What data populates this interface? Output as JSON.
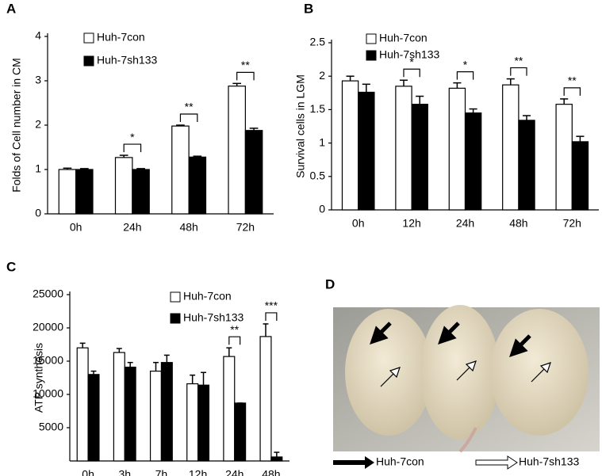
{
  "chart_data": [
    {
      "type": "bar",
      "panel": "A",
      "y_label": "Folds of Cell number in CM",
      "categories": [
        "0h",
        "24h",
        "48h",
        "72h"
      ],
      "series": [
        {
          "name": "Huh-7con",
          "color": "#ffffff",
          "values": [
            1.0,
            1.27,
            1.98,
            2.88
          ],
          "errors": [
            0.03,
            0.05,
            0.02,
            0.06
          ]
        },
        {
          "name": "Huh-7sh133",
          "color": "#000000",
          "values": [
            1.0,
            1.0,
            1.28,
            1.88
          ],
          "errors": [
            0.02,
            0.02,
            0.02,
            0.05
          ]
        }
      ],
      "significance": [
        null,
        "*",
        "**",
        "**"
      ],
      "ylim": [
        0,
        4
      ],
      "yticks": [
        0,
        1,
        2,
        3,
        4
      ]
    },
    {
      "type": "bar",
      "panel": "B",
      "y_label": "Survival cells in LGM",
      "categories": [
        "0h",
        "12h",
        "24h",
        "48h",
        "72h"
      ],
      "series": [
        {
          "name": "Huh-7con",
          "color": "#ffffff",
          "values": [
            1.93,
            1.85,
            1.82,
            1.87,
            1.58
          ],
          "errors": [
            0.07,
            0.09,
            0.08,
            0.09,
            0.08
          ]
        },
        {
          "name": "Huh-7sh133",
          "color": "#000000",
          "values": [
            1.76,
            1.58,
            1.45,
            1.34,
            1.02
          ],
          "errors": [
            0.12,
            0.12,
            0.06,
            0.07,
            0.08
          ]
        }
      ],
      "significance": [
        null,
        "*",
        "*",
        "**",
        "**"
      ],
      "ylim": [
        0,
        2.5
      ],
      "yticks": [
        0,
        0.5,
        1,
        1.5,
        2,
        2.5
      ]
    },
    {
      "type": "bar",
      "panel": "C",
      "y_label": "ATP synthesis",
      "categories": [
        "0h",
        "3h",
        "7h",
        "12h",
        "24h",
        "48h"
      ],
      "series": [
        {
          "name": "Huh-7con",
          "color": "#ffffff",
          "values": [
            17000,
            16300,
            13500,
            11600,
            15700,
            18700
          ],
          "errors": [
            700,
            600,
            1300,
            1300,
            1300,
            1900
          ]
        },
        {
          "name": "Huh-7sh133",
          "color": "#000000",
          "values": [
            13000,
            14100,
            14800,
            11400,
            8700,
            600
          ],
          "errors": [
            500,
            700,
            1100,
            1900,
            0,
            700
          ]
        }
      ],
      "significance": [
        null,
        null,
        null,
        null,
        "**",
        "***"
      ],
      "ylim": [
        0,
        25000
      ],
      "yticks": [
        5000,
        10000,
        15000,
        20000,
        25000
      ]
    }
  ],
  "panel_d": {
    "panel": "D",
    "legend": [
      "Huh-7con",
      "Huh-7sh133"
    ]
  }
}
